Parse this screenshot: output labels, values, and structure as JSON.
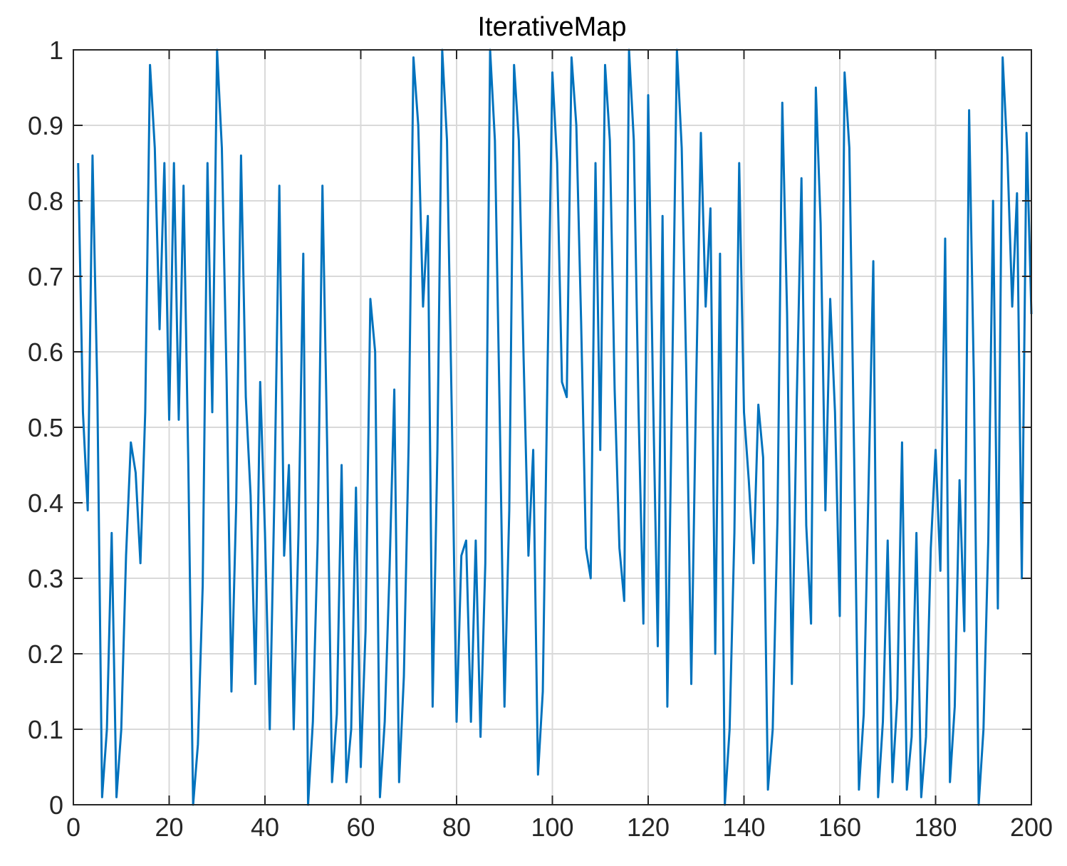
{
  "chart_data": {
    "type": "line",
    "title": "IterativeMap",
    "xlabel": "",
    "ylabel": "",
    "xlim": [
      0,
      200
    ],
    "ylim": [
      0,
      1
    ],
    "x_ticks": [
      0,
      20,
      40,
      60,
      80,
      100,
      120,
      140,
      160,
      180,
      200
    ],
    "x_tick_labels": [
      "0",
      "20",
      "40",
      "60",
      "80",
      "100",
      "120",
      "140",
      "160",
      "180",
      "200"
    ],
    "y_ticks": [
      0,
      0.1,
      0.2,
      0.3,
      0.4,
      0.5,
      0.6,
      0.7,
      0.8,
      0.9,
      1
    ],
    "y_tick_labels": [
      "0",
      "0.1",
      "0.2",
      "0.3",
      "0.4",
      "0.5",
      "0.6",
      "0.7",
      "0.8",
      "0.9",
      "1"
    ],
    "grid": true,
    "colors": {
      "line": "#0072BD",
      "grid": "#d9d9d9",
      "axes": "#262626"
    },
    "series": [
      {
        "x": [
          1,
          2,
          3,
          4,
          5,
          6,
          7,
          8,
          9,
          10,
          11,
          12,
          13,
          14,
          15,
          16,
          17,
          18,
          19,
          20,
          21,
          22,
          23,
          24,
          25,
          26,
          27,
          28,
          29,
          30,
          31,
          32,
          33,
          34,
          35,
          36,
          37,
          38,
          39,
          40,
          41,
          42,
          43,
          44,
          45,
          46,
          47,
          48,
          49,
          50,
          51,
          52,
          53,
          54,
          55,
          56,
          57,
          58,
          59,
          60,
          61,
          62,
          63,
          64,
          65,
          66,
          67,
          68,
          69,
          70,
          71,
          72,
          73,
          74,
          75,
          76,
          77,
          78,
          79,
          80,
          81,
          82,
          83,
          84,
          85,
          86,
          87,
          88,
          89,
          90,
          91,
          92,
          93,
          94,
          95,
          96,
          97,
          98,
          99,
          100,
          101,
          102,
          103,
          104,
          105,
          106,
          107,
          108,
          109,
          110,
          111,
          112,
          113,
          114,
          115,
          116,
          117,
          118,
          119,
          120,
          121,
          122,
          123,
          124,
          125,
          126,
          127,
          128,
          129,
          130,
          131,
          132,
          133,
          134,
          135,
          136,
          137,
          138,
          139,
          140,
          141,
          142,
          143,
          144,
          145,
          146,
          147,
          148,
          149,
          150,
          151,
          152,
          153,
          154,
          155,
          156,
          157,
          158,
          159,
          160,
          161,
          162,
          163,
          164,
          165,
          166,
          167,
          168,
          169,
          170,
          171,
          172,
          173,
          174,
          175,
          176,
          177,
          178,
          179,
          180,
          181,
          182,
          183,
          184,
          185,
          186,
          187,
          188,
          189,
          190,
          191,
          192,
          193,
          194,
          195,
          196,
          197,
          198,
          199,
          200
        ],
        "y": [
          0.85,
          0.52,
          0.39,
          0.86,
          0.55,
          0.01,
          0.1,
          0.36,
          0.01,
          0.1,
          0.33,
          0.48,
          0.44,
          0.32,
          0.52,
          0.98,
          0.87,
          0.63,
          0.85,
          0.51,
          0.85,
          0.51,
          0.82,
          0.45,
          0.0,
          0.08,
          0.29,
          0.85,
          0.52,
          1.0,
          0.87,
          0.56,
          0.15,
          0.4,
          0.86,
          0.54,
          0.41,
          0.16,
          0.56,
          0.36,
          0.1,
          0.42,
          0.82,
          0.33,
          0.45,
          0.1,
          0.36,
          0.73,
          0.0,
          0.11,
          0.35,
          0.82,
          0.47,
          0.03,
          0.12,
          0.45,
          0.03,
          0.1,
          0.42,
          0.05,
          0.23,
          0.67,
          0.6,
          0.01,
          0.11,
          0.31,
          0.55,
          0.03,
          0.17,
          0.48,
          0.99,
          0.9,
          0.66,
          0.78,
          0.13,
          0.47,
          1.0,
          0.88,
          0.52,
          0.11,
          0.33,
          0.35,
          0.11,
          0.35,
          0.09,
          0.32,
          1.0,
          0.88,
          0.52,
          0.13,
          0.39,
          0.98,
          0.88,
          0.59,
          0.33,
          0.47,
          0.04,
          0.15,
          0.58,
          0.97,
          0.85,
          0.56,
          0.54,
          0.99,
          0.9,
          0.64,
          0.34,
          0.3,
          0.85,
          0.47,
          0.98,
          0.88,
          0.55,
          0.34,
          0.27,
          1.0,
          0.88,
          0.52,
          0.24,
          0.94,
          0.55,
          0.21,
          0.78,
          0.13,
          0.56,
          1.0,
          0.87,
          0.56,
          0.16,
          0.55,
          0.89,
          0.66,
          0.79,
          0.2,
          0.73,
          0.0,
          0.1,
          0.36,
          0.85,
          0.52,
          0.43,
          0.32,
          0.53,
          0.46,
          0.02,
          0.1,
          0.38,
          0.93,
          0.65,
          0.16,
          0.53,
          0.83,
          0.37,
          0.24,
          0.95,
          0.77,
          0.39,
          0.67,
          0.52,
          0.25,
          0.97,
          0.87,
          0.46,
          0.02,
          0.12,
          0.42,
          0.72,
          0.01,
          0.11,
          0.35,
          0.03,
          0.14,
          0.48,
          0.02,
          0.09,
          0.36,
          0.01,
          0.09,
          0.34,
          0.47,
          0.31,
          0.75,
          0.03,
          0.13,
          0.43,
          0.23,
          0.92,
          0.56,
          0.0,
          0.1,
          0.35,
          0.8,
          0.26,
          0.99,
          0.86,
          0.66,
          0.81,
          0.3,
          0.89,
          0.65
        ]
      }
    ]
  }
}
